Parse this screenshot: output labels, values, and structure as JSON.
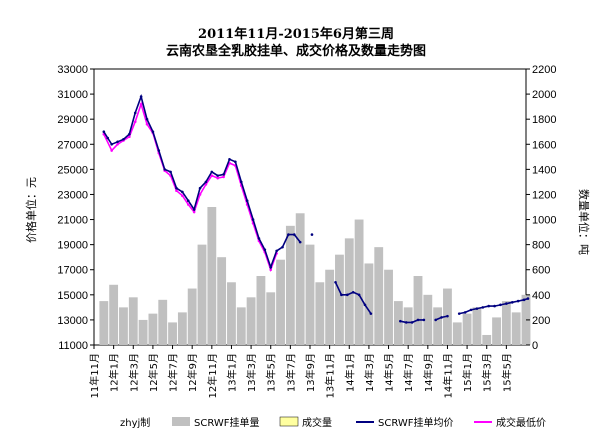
{
  "chart_data": {
    "type": "bar+line",
    "title_line1": "2011年11月-2015年6月第三周",
    "title_line2": "云南农垦全乳胶挂单、成交价格及数量走势图",
    "ylabel_left": "价格单位：元",
    "ylabel_right": "数量单位：吨",
    "ylim_left": [
      11000,
      33000
    ],
    "yticks_left": [
      11000,
      13000,
      15000,
      17000,
      19000,
      21000,
      23000,
      25000,
      27000,
      29000,
      31000,
      33000
    ],
    "ylim_right": [
      0,
      2200
    ],
    "yticks_right": [
      0,
      200,
      400,
      600,
      800,
      1000,
      1200,
      1400,
      1600,
      1800,
      2000,
      2200
    ],
    "x_categories": [
      "11年11月",
      "12年1月",
      "12年3月",
      "12年5月",
      "12年7月",
      "12年9月",
      "12年11月",
      "13年1月",
      "13年3月",
      "13年5月",
      "13年7月",
      "13年9月",
      "13年11月",
      "14年1月",
      "14年3月",
      "14年5月",
      "14年7月",
      "14年9月",
      "14年11月",
      "15年1月",
      "15年3月",
      "15年5月"
    ],
    "grid": false,
    "legend_position": "bottom",
    "credit": "zhyj制",
    "series": [
      {
        "name": "SCRWF挂单量",
        "kind": "bar",
        "axis": "right",
        "color": "#c0c0c0",
        "x": [
          0,
          0.5,
          1,
          1.5,
          2,
          2.5,
          3,
          3.5,
          4,
          4.5,
          5,
          5.5,
          6,
          6.5,
          7,
          7.5,
          8,
          8.5,
          9,
          9.5,
          10,
          10.5,
          11,
          11.5,
          12,
          12.5,
          13,
          13.5,
          14,
          14.5,
          15,
          15.5,
          16,
          16.5,
          17,
          17.5,
          18,
          18.5,
          19,
          19.5,
          20,
          20.5,
          21,
          21.5
        ],
        "values": [
          350,
          480,
          300,
          380,
          200,
          250,
          360,
          180,
          260,
          450,
          800,
          1100,
          700,
          500,
          300,
          380,
          550,
          420,
          680,
          950,
          1050,
          800,
          500,
          600,
          720,
          850,
          1000,
          650,
          780,
          600,
          350,
          300,
          550,
          400,
          300,
          450,
          180,
          250,
          300,
          80,
          220,
          350,
          260,
          400
        ]
      },
      {
        "name": "成交量",
        "kind": "bar",
        "axis": "right",
        "color": "#ffffa0",
        "values": []
      },
      {
        "name": "SCRWF挂单均价",
        "kind": "line",
        "axis": "left",
        "color": "#000080",
        "x": [
          0,
          0.2,
          0.4,
          0.7,
          1.0,
          1.3,
          1.6,
          1.9,
          2.2,
          2.5,
          2.8,
          3.1,
          3.4,
          3.7,
          4.0,
          4.3,
          4.6,
          4.9,
          5.2,
          5.5,
          5.8,
          6.1,
          6.4,
          6.7,
          7.0,
          7.3,
          7.6,
          7.9,
          8.2,
          8.5,
          8.8,
          9.1,
          9.4,
          9.7,
          10.0,
          10.3,
          10.6,
          10.9,
          11.2,
          11.5,
          11.8,
          12.1,
          12.4,
          12.7,
          13.0,
          13.3,
          13.6,
          13.9,
          14.2,
          14.5,
          14.8,
          15.1,
          15.4,
          15.7,
          16.0,
          16.3,
          16.6,
          16.9,
          17.2,
          17.5,
          17.8,
          18.1,
          18.4,
          18.7,
          19.0,
          19.3,
          19.6,
          19.9,
          20.2,
          20.5,
          20.8,
          21.1,
          21.4,
          21.6
        ],
        "values": [
          28000,
          27500,
          27000,
          27200,
          27400,
          27800,
          29500,
          30800,
          29000,
          28000,
          26500,
          25000,
          24800,
          23500,
          23200,
          22500,
          21800,
          23500,
          24000,
          24800,
          24500,
          24600,
          25800,
          25600,
          24000,
          22500,
          21000,
          19500,
          18600,
          17200,
          18500,
          18800,
          19800,
          19800,
          19200,
          null,
          19800,
          null,
          null,
          null,
          16000,
          15000,
          15000,
          15200,
          15000,
          14200,
          13500,
          null,
          null,
          null,
          null,
          12900,
          12800,
          12800,
          13000,
          13000,
          null,
          13000,
          13200,
          13300,
          null,
          13500,
          13600,
          13800,
          13900,
          14000,
          14100,
          14100,
          14200,
          14300,
          14400,
          14500,
          14600,
          14700
        ]
      },
      {
        "name": "成交最低价",
        "kind": "line",
        "axis": "left",
        "color": "#ff00ff",
        "x": [
          0,
          0.4,
          0.7,
          1.0,
          1.3,
          1.6,
          1.9,
          2.2,
          2.5,
          2.8,
          3.1,
          3.4,
          3.7,
          4.0,
          4.3,
          4.6,
          4.9,
          5.2,
          5.5,
          5.8,
          6.1,
          6.4,
          6.7,
          7.0,
          7.3,
          7.6,
          7.9,
          8.2,
          8.5,
          8.8
        ],
        "values": [
          27800,
          26500,
          27000,
          27300,
          27600,
          28800,
          30200,
          28600,
          27900,
          26300,
          24900,
          24500,
          23300,
          22900,
          22200,
          21600,
          23000,
          23800,
          24500,
          24300,
          24400,
          25500,
          25300,
          23700,
          22200,
          20700,
          19300,
          18400,
          17000,
          18300
        ]
      }
    ]
  }
}
